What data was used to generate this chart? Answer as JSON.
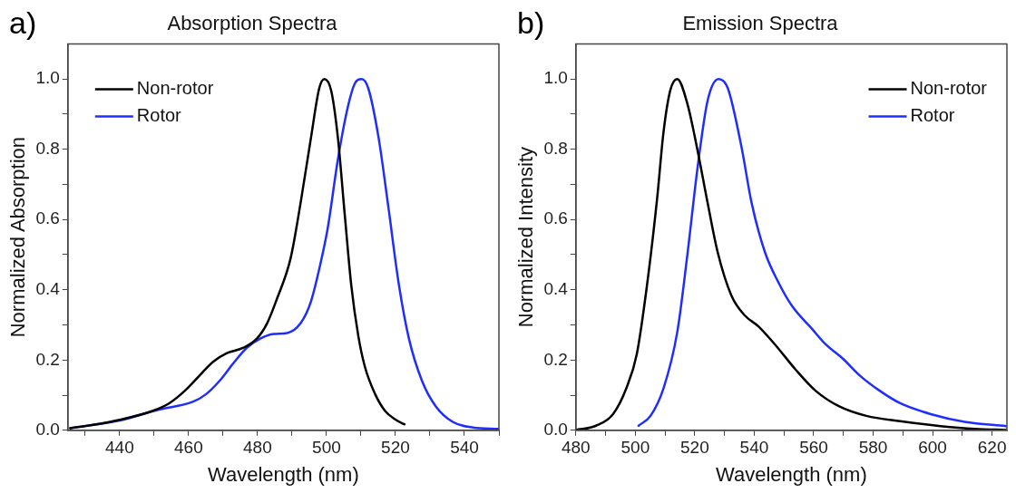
{
  "chart_data": [
    {
      "type": "line",
      "title": "Absorption Spectra",
      "xlabel": "Wavelength (nm)",
      "ylabel": "Normalized Absorption",
      "annotations": [
        "a)"
      ],
      "xlim": [
        425,
        550
      ],
      "xticks": [
        {
          "value": 430,
          "label": null
        },
        440,
        {
          "value": 450,
          "label": null
        },
        460,
        {
          "value": 470,
          "label": null
        },
        480,
        {
          "value": 490,
          "label": null
        },
        500,
        {
          "value": 510,
          "label": null
        },
        520,
        {
          "value": 530,
          "label": null
        },
        540,
        {
          "value": 550,
          "label": null
        }
      ],
      "ylim": [
        0,
        1.1
      ],
      "yticks": [
        {
          "value": 0,
          "label": "0.0"
        },
        {
          "value": 0.1,
          "label": null
        },
        0.2,
        {
          "value": 0.3,
          "label": null
        },
        0.4,
        {
          "value": 0.5,
          "label": null
        },
        0.6,
        {
          "value": 0.7,
          "label": null
        },
        0.8,
        {
          "value": 0.9,
          "label": null
        },
        {
          "value": 1,
          "label": "1.0"
        }
      ],
      "grid": false,
      "legend": "top left",
      "marker": "none",
      "line_style": "solid",
      "series": [
        {
          "name": "Non-rotor",
          "color": "#000000",
          "x": [
            425.7,
            431.9,
            440,
            449.5,
            454.4,
            459.3,
            463.2,
            467.1,
            471,
            475.9,
            479.8,
            482.8,
            485.7,
            489.6,
            492.5,
            495.5,
            497.9,
            499.4,
            501.4,
            503.3,
            505.3,
            507.2,
            509.2,
            511.1,
            514.1,
            517,
            519.9,
            522.6
          ],
          "values": [
            0.006,
            0.015,
            0.03,
            0.055,
            0.077,
            0.116,
            0.156,
            0.195,
            0.219,
            0.235,
            0.261,
            0.305,
            0.376,
            0.49,
            0.648,
            0.833,
            0.974,
            1.0,
            0.965,
            0.833,
            0.613,
            0.411,
            0.27,
            0.182,
            0.103,
            0.055,
            0.031,
            0.017
          ]
        },
        {
          "name": "Rotor",
          "color": "#1f2eff",
          "x": [
            425.7,
            440,
            451.4,
            461.2,
            465.1,
            469.1,
            473,
            476.9,
            480.8,
            484.7,
            488.6,
            492.5,
            495.5,
            498.4,
            500.4,
            503.3,
            506.2,
            508.2,
            510.2,
            512.1,
            515.1,
            518,
            520.9,
            523.9,
            527.8,
            531.7,
            536.6,
            542.5,
            549.8
          ],
          "values": [
            0.006,
            0.028,
            0.059,
            0.081,
            0.103,
            0.142,
            0.191,
            0.235,
            0.261,
            0.274,
            0.277,
            0.305,
            0.367,
            0.481,
            0.578,
            0.771,
            0.921,
            0.987,
            1.0,
            0.974,
            0.833,
            0.631,
            0.42,
            0.261,
            0.138,
            0.068,
            0.024,
            0.008,
            0.004
          ]
        }
      ]
    },
    {
      "type": "line",
      "title": "Emission Spectra",
      "xlabel": "Wavelength (nm)",
      "ylabel": "Normalized Intensity",
      "annotations": [
        "b)"
      ],
      "xlim": [
        480,
        625
      ],
      "xticks": [
        480,
        {
          "value": 490,
          "label": null
        },
        500,
        {
          "value": 510,
          "label": null
        },
        520,
        {
          "value": 530,
          "label": null
        },
        540,
        {
          "value": 550,
          "label": null
        },
        560,
        {
          "value": 570,
          "label": null
        },
        580,
        {
          "value": 590,
          "label": null
        },
        600,
        {
          "value": 610,
          "label": null
        },
        620
      ],
      "ylim": [
        0,
        1.1
      ],
      "yticks": [
        {
          "value": 0,
          "label": "0.0"
        },
        {
          "value": 0.1,
          "label": null
        },
        0.2,
        {
          "value": 0.3,
          "label": null
        },
        0.4,
        {
          "value": 0.5,
          "label": null
        },
        0.6,
        {
          "value": 0.7,
          "label": null
        },
        0.8,
        {
          "value": 0.9,
          "label": null
        },
        {
          "value": 1,
          "label": "1.0"
        }
      ],
      "grid": false,
      "legend": "top right",
      "marker": "none",
      "line_style": "solid",
      "series": [
        {
          "name": "Non-rotor",
          "color": "#000000",
          "x": [
            480,
            486.8,
            492.5,
            497,
            500.5,
            503.9,
            507.3,
            509.5,
            511.8,
            514.1,
            517.5,
            520.9,
            524.3,
            527.7,
            532.3,
            536.8,
            541.4,
            547,
            553.9,
            560.7,
            568.6,
            577.7,
            589.1,
            602.7,
            614.1,
            624.7
          ],
          "values": [
            0.001,
            0.013,
            0.046,
            0.12,
            0.217,
            0.411,
            0.657,
            0.85,
            0.969,
            1.0,
            0.93,
            0.798,
            0.648,
            0.507,
            0.384,
            0.327,
            0.296,
            0.244,
            0.173,
            0.112,
            0.068,
            0.041,
            0.026,
            0.012,
            0.004,
            0.001
          ]
        },
        {
          "name": "Rotor",
          "color": "#1f2eff",
          "x": [
            501.1,
            505.1,
            509.5,
            514.1,
            517.5,
            520.9,
            524.3,
            528,
            531.1,
            535.7,
            539.1,
            543.6,
            548.2,
            552.7,
            559.5,
            564.1,
            569.8,
            575.5,
            582.3,
            589.1,
            599.4,
            610.8,
            624.7
          ],
          "values": [
            0.013,
            0.041,
            0.12,
            0.279,
            0.499,
            0.745,
            0.938,
            1.0,
            0.974,
            0.807,
            0.648,
            0.507,
            0.42,
            0.354,
            0.288,
            0.244,
            0.204,
            0.156,
            0.112,
            0.077,
            0.046,
            0.024,
            0.012
          ]
        }
      ]
    }
  ]
}
